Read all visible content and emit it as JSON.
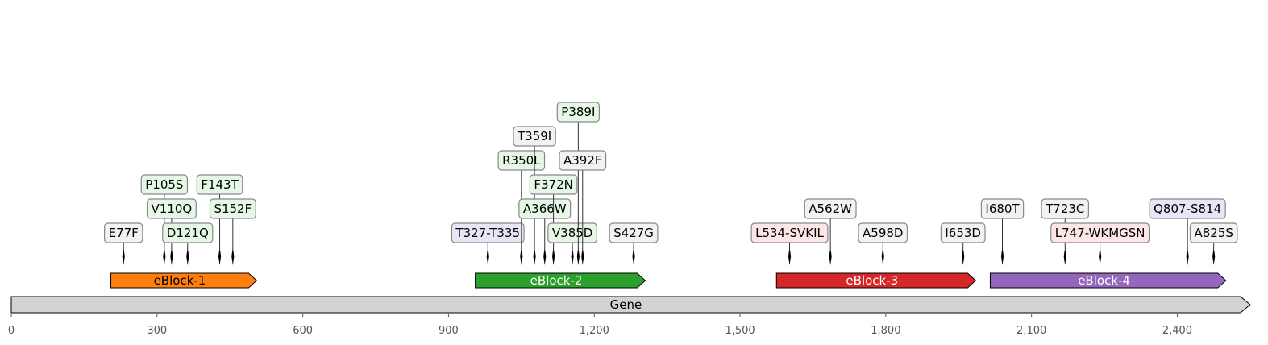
{
  "gene": {
    "name": "Gene",
    "length": 2550,
    "color": "#d3d3d3"
  },
  "axis": {
    "ticks": [
      0,
      300,
      600,
      900,
      1200,
      1500,
      1800,
      2100,
      2400
    ],
    "tick_labels": [
      "0",
      "300",
      "600",
      "900",
      "1,200",
      "1,500",
      "1,800",
      "2,100",
      "2,400"
    ]
  },
  "blocks": [
    {
      "name": "eBlock-1",
      "start": 205,
      "end": 505,
      "color": "#ff7f0e",
      "text_color": "#000000"
    },
    {
      "name": "eBlock-2",
      "start": 955,
      "end": 1305,
      "color": "#2ca02c",
      "text_color": "#ffffff"
    },
    {
      "name": "eBlock-3",
      "start": 1575,
      "end": 1985,
      "color": "#d62728",
      "text_color": "#ffffff"
    },
    {
      "name": "eBlock-4",
      "start": 2015,
      "end": 2500,
      "color": "#9467bd",
      "text_color": "#ffffff"
    }
  ],
  "mutations": [
    {
      "label": "E77F",
      "pos": 231,
      "level": 0,
      "bg": "#f2f2f2"
    },
    {
      "label": "P105S",
      "pos": 315,
      "level": 2,
      "bg": "#e6f7e6"
    },
    {
      "label": "V110Q",
      "pos": 330,
      "level": 1,
      "bg": "#e6f7e6"
    },
    {
      "label": "D121Q",
      "pos": 363,
      "level": 0,
      "bg": "#e6f7e6"
    },
    {
      "label": "F143T",
      "pos": 429,
      "level": 2,
      "bg": "#e6f7e6"
    },
    {
      "label": "S152F",
      "pos": 456,
      "level": 1,
      "bg": "#e6f7e6"
    },
    {
      "label": "T327-T335",
      "pos": 981,
      "level": 0,
      "bg": "#e6e6f7"
    },
    {
      "label": "R350L",
      "pos": 1050,
      "level": 3,
      "bg": "#e6f7e6"
    },
    {
      "label": "T359I",
      "pos": 1077,
      "level": 4,
      "bg": "#f2f2f2"
    },
    {
      "label": "A366W",
      "pos": 1098,
      "level": 1,
      "bg": "#e6f7e6"
    },
    {
      "label": "F372N",
      "pos": 1116,
      "level": 2,
      "bg": "#e6f7e6"
    },
    {
      "label": "V385D",
      "pos": 1155,
      "level": 0,
      "bg": "#e6f7e6"
    },
    {
      "label": "P389I",
      "pos": 1167,
      "level": 5,
      "bg": "#e6f7e6"
    },
    {
      "label": "A392F",
      "pos": 1176,
      "level": 3,
      "bg": "#f2f2f2"
    },
    {
      "label": "S427G",
      "pos": 1281,
      "level": 0,
      "bg": "#f2f2f2"
    },
    {
      "label": "L534-SVKIL",
      "pos": 1602,
      "level": 0,
      "bg": "#fde6e6"
    },
    {
      "label": "A562W",
      "pos": 1686,
      "level": 1,
      "bg": "#f2f2f2"
    },
    {
      "label": "A598D",
      "pos": 1794,
      "level": 0,
      "bg": "#f2f2f2"
    },
    {
      "label": "I653D",
      "pos": 1959,
      "level": 0,
      "bg": "#f2f2f2"
    },
    {
      "label": "I680T",
      "pos": 2040,
      "level": 1,
      "bg": "#f2f2f2"
    },
    {
      "label": "T723C",
      "pos": 2169,
      "level": 1,
      "bg": "#f2f2f2"
    },
    {
      "label": "L747-WKMGSN",
      "pos": 2241,
      "level": 0,
      "bg": "#fde6e6"
    },
    {
      "label": "Q807-S814",
      "pos": 2421,
      "level": 1,
      "bg": "#e6e6f7"
    },
    {
      "label": "A825S",
      "pos": 2475,
      "level": 0,
      "bg": "#f2f2f2"
    }
  ]
}
